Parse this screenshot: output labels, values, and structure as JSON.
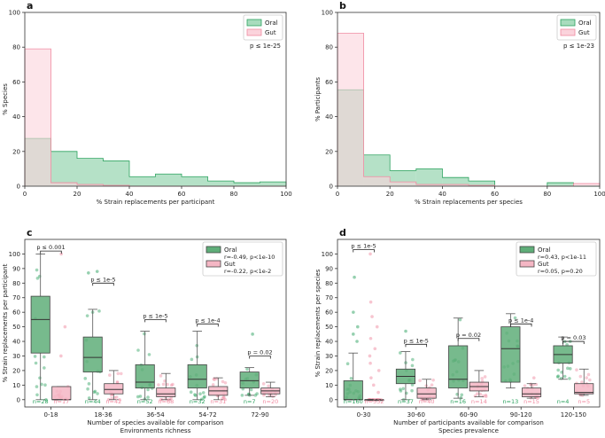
{
  "colors": {
    "oral": "#2ca25f",
    "oral_fill": "#a8dcbd",
    "gut": "#f08ba1",
    "gut_fill": "#fbd3dc",
    "overlap": "#b5c6b3",
    "oral_box": "#5fae79",
    "gut_box": "#f4b6c4"
  },
  "chart_data": [
    {
      "id": "a",
      "type": "histogram",
      "panel_label": "a",
      "xlabel": "% Strain replacements per participant",
      "ylabel": "% Species",
      "xlim": [
        0,
        100
      ],
      "ylim": [
        0,
        100
      ],
      "x_ticks": [
        "0",
        "20",
        "40",
        "60",
        "80",
        "100"
      ],
      "y_ticks": [
        "0",
        "20",
        "40",
        "60",
        "80",
        "100"
      ],
      "bin_edges": [
        0,
        10,
        20,
        30,
        40,
        50,
        60,
        70,
        80,
        90,
        100
      ],
      "series": [
        {
          "name": "Oral",
          "values": [
            27.5,
            20,
            16,
            14.5,
            5.5,
            7,
            5.5,
            3,
            2,
            2.5
          ]
        },
        {
          "name": "Gut",
          "values": [
            79,
            2,
            1,
            0.5,
            0,
            0,
            0,
            0,
            0,
            0
          ]
        }
      ],
      "annotation": "p ≤ 1e-25",
      "legend_position": "top-right"
    },
    {
      "id": "b",
      "type": "histogram",
      "panel_label": "b",
      "xlabel": "% Strain replacements per species",
      "ylabel": "% Participants",
      "xlim": [
        0,
        100
      ],
      "ylim": [
        0,
        100
      ],
      "x_ticks": [
        "0",
        "20",
        "40",
        "60",
        "80",
        "100"
      ],
      "y_ticks": [
        "0",
        "20",
        "40",
        "60",
        "80",
        "100"
      ],
      "bin_edges": [
        0,
        10,
        20,
        30,
        40,
        50,
        60,
        70,
        80,
        90,
        100
      ],
      "series": [
        {
          "name": "Oral",
          "values": [
            55.5,
            18,
            9,
            10,
            5,
            3,
            0,
            0,
            2,
            0
          ]
        },
        {
          "name": "Gut",
          "values": [
            88,
            5.5,
            2.5,
            1,
            1,
            0.5,
            0,
            0,
            0,
            1.5
          ]
        }
      ],
      "annotation": "p ≤ 1e-23",
      "legend_position": "top-right"
    },
    {
      "id": "c",
      "type": "box",
      "panel_label": "c",
      "title": "Environments richness",
      "xlabel": "Number of species available for comparison",
      "ylabel": "% Strain replacements per participant",
      "ylim": [
        -5,
        110
      ],
      "y_ticks": [
        "0",
        "10",
        "20",
        "30",
        "40",
        "50",
        "60",
        "70",
        "80",
        "90",
        "100"
      ],
      "categories": [
        "0-18",
        "18-36",
        "36-54",
        "54-72",
        "72-90"
      ],
      "series": [
        {
          "name": "Oral",
          "stat": "r=-0.49, p<1e-10",
          "n": [
            "n=28",
            "n=44",
            "n=52",
            "n=32",
            "n=7"
          ],
          "boxes": [
            {
              "q1": 32,
              "med": 55,
              "q3": 71,
              "lo": 0,
              "hi": 100
            },
            {
              "q1": 19,
              "med": 29,
              "q3": 43,
              "lo": 0,
              "hi": 62
            },
            {
              "q1": 8,
              "med": 12,
              "q3": 24,
              "lo": 0,
              "hi": 47
            },
            {
              "q1": 8,
              "med": 14,
              "q3": 24,
              "lo": 0,
              "hi": 47
            },
            {
              "q1": 8,
              "med": 13,
              "q3": 19,
              "lo": 3,
              "hi": 22
            }
          ],
          "outliers": [
            [],
            [
              87,
              88
            ],
            [],
            [],
            [
              45
            ]
          ]
        },
        {
          "name": "Gut",
          "stat": "r=-0.22, p<1e-2",
          "n": [
            "n=17",
            "n=42",
            "n=68",
            "n=31",
            "n=20"
          ],
          "boxes": [
            {
              "q1": 0,
              "med": 0,
              "q3": 9,
              "lo": 0,
              "hi": 9
            },
            {
              "q1": 4,
              "med": 7,
              "q3": 11,
              "lo": 0,
              "hi": 20
            },
            {
              "q1": 2,
              "med": 4,
              "q3": 8,
              "lo": 0,
              "hi": 18
            },
            {
              "q1": 3,
              "med": 6,
              "q3": 9,
              "lo": 0,
              "hi": 15
            },
            {
              "q1": 4,
              "med": 6,
              "q3": 8,
              "lo": 2,
              "hi": 12
            }
          ],
          "outliers": [
            [
              100,
              50,
              30
            ],
            [],
            [],
            [],
            []
          ]
        }
      ],
      "significance": [
        "p ≤ 0.001",
        "p ≤ 1e-5",
        "p ≤ 1e-5",
        "p ≤ 1e-4",
        "p = 0.02"
      ],
      "sig_y": [
        102,
        80,
        55,
        52,
        30
      ],
      "legend_position": "top-right"
    },
    {
      "id": "d",
      "type": "box",
      "panel_label": "d",
      "title": "Species prevalence",
      "xlabel": "Number of participants available for comparison",
      "ylabel": "% Strain replacements per species",
      "ylim": [
        -5,
        110
      ],
      "y_ticks": [
        "0",
        "10",
        "20",
        "30",
        "40",
        "50",
        "60",
        "70",
        "80",
        "90",
        "100"
      ],
      "categories": [
        "0-30",
        "30-60",
        "60-90",
        "90-120",
        "120-150"
      ],
      "series": [
        {
          "name": "Oral",
          "stat": "r=0.43, p<1e-11",
          "n": [
            "n=160",
            "n=37",
            "n=16",
            "n=13",
            "n=4"
          ],
          "boxes": [
            {
              "q1": 0,
              "med": 0,
              "q3": 13,
              "lo": 0,
              "hi": 32
            },
            {
              "q1": 11,
              "med": 16,
              "q3": 21,
              "lo": 0,
              "hi": 33
            },
            {
              "q1": 8,
              "med": 14,
              "q3": 37,
              "lo": 1,
              "hi": 56
            },
            {
              "q1": 12,
              "med": 35,
              "q3": 50,
              "lo": 8,
              "hi": 59
            },
            {
              "q1": 25,
              "med": 31,
              "q3": 37,
              "lo": 14,
              "hi": 43
            }
          ],
          "outliers": [
            [
              84,
              60,
              50,
              45,
              40
            ],
            [
              47
            ],
            [],
            [],
            []
          ]
        },
        {
          "name": "Gut",
          "stat": "r=0.05, p=0.20",
          "n": [
            "n=532",
            "n=40",
            "n=14",
            "n=15",
            "n=5"
          ],
          "boxes": [
            {
              "q1": 0,
              "med": 0,
              "q3": 0,
              "lo": 0,
              "hi": 0
            },
            {
              "q1": 1,
              "med": 4,
              "q3": 8,
              "lo": 0,
              "hi": 14
            },
            {
              "q1": 6,
              "med": 9,
              "q3": 12,
              "lo": 2,
              "hi": 20
            },
            {
              "q1": 2,
              "med": 4,
              "q3": 8,
              "lo": 1,
              "hi": 11
            },
            {
              "q1": 4,
              "med": 5,
              "q3": 11,
              "lo": 3,
              "hi": 21
            }
          ],
          "outliers": [
            [
              100,
              67,
              57,
              50,
              42,
              35,
              30,
              25,
              20,
              15,
              10,
              5
            ],
            [],
            [],
            [
              15
            ],
            []
          ]
        }
      ],
      "significance": [
        "p ≤ 1e-5",
        "p ≤ 1e-5",
        "p = 0.02",
        "p ≤ 1e-4",
        "p = 0.03"
      ],
      "sig_y": [
        103,
        38,
        42,
        52,
        40
      ],
      "legend_position": "top-right"
    }
  ]
}
